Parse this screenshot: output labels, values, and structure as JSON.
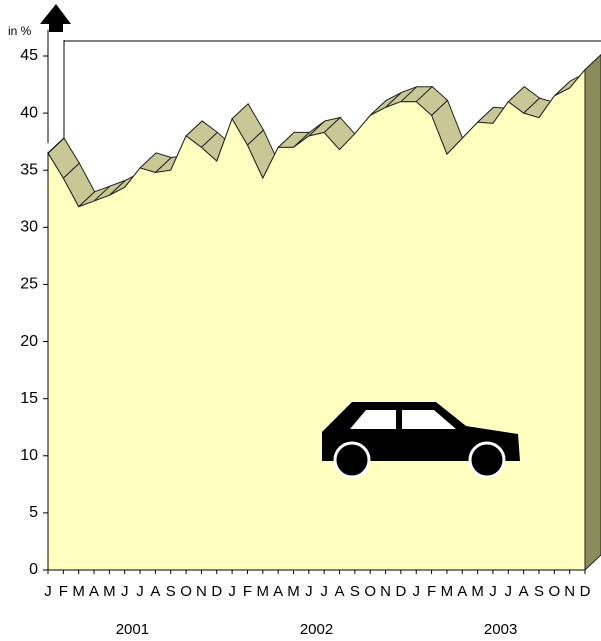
{
  "chart_data": {
    "type": "area3d",
    "y_label": "in %",
    "categories": [
      "J",
      "F",
      "M",
      "A",
      "M",
      "J",
      "J",
      "A",
      "S",
      "O",
      "N",
      "D",
      "J",
      "F",
      "M",
      "A",
      "M",
      "J",
      "J",
      "A",
      "S",
      "O",
      "N",
      "D",
      "J",
      "F",
      "M",
      "A",
      "M",
      "J",
      "J",
      "A",
      "S",
      "O",
      "N",
      "D"
    ],
    "year_labels": [
      "2001",
      "2002",
      "2003"
    ],
    "values": [
      36.5,
      34.3,
      31.8,
      32.3,
      32.8,
      33.5,
      35.2,
      34.8,
      35.0,
      38.0,
      37.0,
      35.8,
      39.5,
      37.2,
      34.3,
      37.0,
      37.0,
      38.0,
      38.3,
      36.8,
      38.2,
      39.8,
      40.5,
      41.0,
      41.0,
      39.8,
      36.4,
      37.8,
      39.2,
      39.1,
      41.0,
      40.0,
      39.6,
      41.5,
      42.2,
      43.8
    ],
    "color": "#ffffc0",
    "top_color": "#c8c896",
    "side_color": "#8c8c5a",
    "ylim": [
      0,
      45
    ],
    "yticks": [
      0,
      5,
      10,
      15,
      20,
      25,
      30,
      35,
      40,
      45
    ]
  }
}
